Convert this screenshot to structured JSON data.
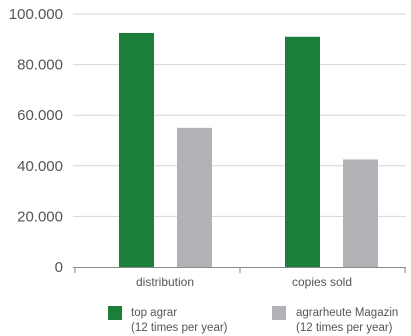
{
  "chart_data": {
    "type": "bar",
    "categories": [
      "distribution",
      "copies sold"
    ],
    "series": [
      {
        "name": "top agrar",
        "note": "(12 times per year)",
        "color": "#1b7f3a",
        "values": [
          92500,
          91000
        ]
      },
      {
        "name": "agrarheute Magazin",
        "note": "(12 times per year)",
        "color": "#b1b2b5",
        "values": [
          55000,
          42500
        ]
      }
    ],
    "ylim": [
      0,
      100000
    ],
    "yticks": [
      0,
      20000,
      40000,
      60000,
      80000,
      100000
    ],
    "ytick_labels": [
      "0",
      "20.000",
      "40.000",
      "60.000",
      "80.000",
      "100.000"
    ],
    "grid": true,
    "legend_position": "bottom"
  }
}
